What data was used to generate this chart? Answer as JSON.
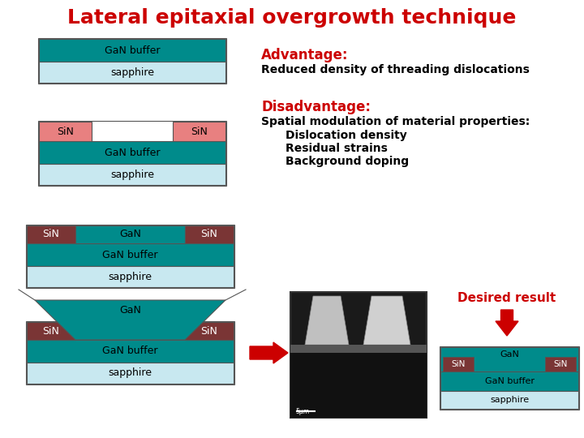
{
  "title": "Lateral epitaxial overgrowth technique",
  "title_color": "#cc0000",
  "title_fontsize": 18,
  "bg_color": "#ffffff",
  "gan_color": "#008B8B",
  "sapphire_color": "#c8e8f0",
  "sin_color_pink": "#e88080",
  "sin_color_brown": "#7a3535",
  "border_color": "#555555",
  "advantage_title": "Advantage:",
  "advantage_text": "Reduced density of threading dislocations",
  "disadvantage_title": "Disadvantage:",
  "disadvantage_text1": "Spatial modulation of material properties:",
  "disadvantage_text2": "Dislocation density",
  "disadvantage_text3": "Residual strains",
  "disadvantage_text4": "Background doping",
  "desired_result_text": "Desired result",
  "arrow_color": "#cc0000"
}
